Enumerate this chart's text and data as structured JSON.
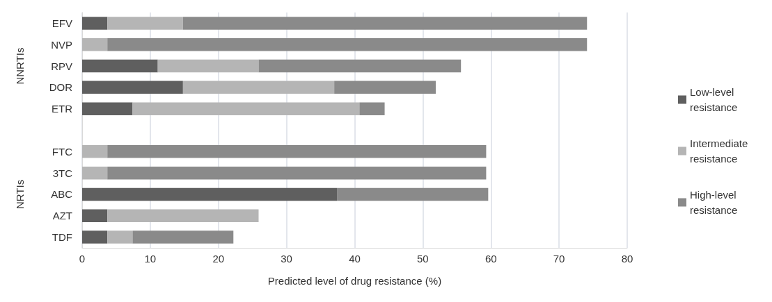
{
  "chart_data": {
    "type": "bar",
    "orientation": "horizontal",
    "stacked": true,
    "xlabel": "Predicted level of drug resistance (%)",
    "categories": [
      "EFV",
      "NVP",
      "RPV",
      "DOR",
      "ETR",
      null,
      "FTC",
      "3TC",
      "ABC",
      "AZT",
      "TDF"
    ],
    "series": [
      {
        "name": "Low-level resistance",
        "color": "#5f5f5f",
        "values": [
          3.7,
          0,
          11.1,
          14.8,
          7.4,
          null,
          0,
          0,
          37.4,
          3.7,
          3.7
        ]
      },
      {
        "name": "Intermediate resistance",
        "color": "#b5b5b5",
        "values": [
          11.1,
          3.7,
          14.8,
          22.2,
          33.3,
          null,
          3.7,
          3.7,
          0,
          22.2,
          3.7
        ]
      },
      {
        "name": "High-level resistance",
        "color": "#8a8a8a",
        "values": [
          59.3,
          70.4,
          29.7,
          14.9,
          3.7,
          null,
          55.6,
          55.6,
          22.2,
          0,
          14.8
        ]
      }
    ],
    "xlim": [
      0,
      80
    ],
    "xticks": [
      0,
      10,
      20,
      30,
      40,
      50,
      60,
      70,
      80
    ],
    "grid": "x",
    "legend": "right",
    "annotations": [
      "NNRTIs",
      "NRTIs"
    ]
  }
}
